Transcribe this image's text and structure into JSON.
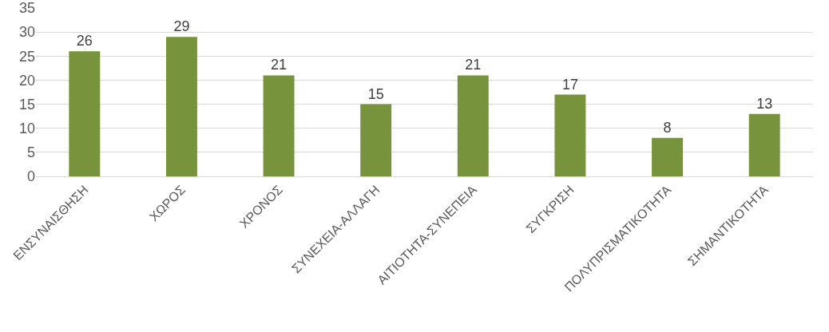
{
  "chart_data": {
    "type": "bar",
    "categories": [
      "ΕΝΣΥΝΑΙΣΘΗΣΗ",
      "ΧΩΡΟΣ",
      "ΧΡΟΝΟΣ",
      "ΣΥΝΕΧΕΙΑ-ΑΛΛΑΓΗ",
      "ΑΙΤΙΟΤΗΤΑ-ΣΥΝΕΠΕΙΑ",
      "ΣΥΓΚΡΙΣΗ",
      "ΠΟΛΥΠΡΙΣΜΑΤΙΚΟΤΗΤΑ",
      "ΣΗΜΑΝΤΙΚΟΤΗΤΑ"
    ],
    "values": [
      26,
      29,
      21,
      15,
      21,
      17,
      8,
      13
    ],
    "color": "#77933c",
    "ylim": [
      0,
      35
    ],
    "yticks": [
      0,
      5,
      10,
      15,
      20,
      25,
      30,
      35
    ],
    "grid": "y",
    "data_labels": true,
    "legend": false
  }
}
